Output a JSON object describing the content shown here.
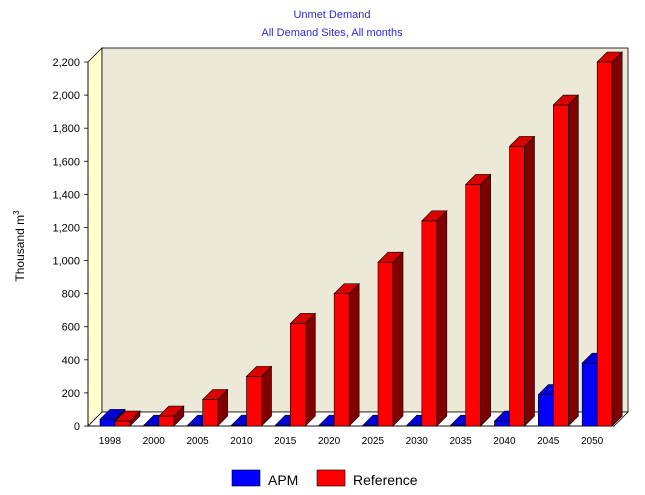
{
  "chart_data": {
    "type": "bar",
    "title": "Unmet Demand",
    "subtitle": "All Demand Sites,  All months",
    "ylabel": "Thousand m",
    "ylabel_superscript": "3",
    "categories": [
      "1998",
      "2000",
      "2005",
      "2010",
      "2015",
      "2020",
      "2025",
      "2030",
      "2035",
      "2040",
      "2045",
      "2050"
    ],
    "ylim": [
      0,
      2200
    ],
    "yticks": [
      0,
      200,
      400,
      600,
      800,
      1000,
      1200,
      1400,
      1600,
      1800,
      2000,
      2200
    ],
    "ytick_labels": [
      "0",
      "200",
      "400",
      "600",
      "800",
      "1,000",
      "1,200",
      "1,400",
      "1,600",
      "1,800",
      "2,000",
      "2,200"
    ],
    "series": [
      {
        "name": "APM",
        "color": "#0000ff",
        "values": [
          40,
          5,
          5,
          5,
          5,
          5,
          5,
          5,
          5,
          30,
          190,
          380
        ]
      },
      {
        "name": "Reference",
        "color": "#ff0000",
        "values": [
          30,
          60,
          160,
          300,
          620,
          800,
          990,
          1240,
          1460,
          1690,
          1940,
          2200
        ]
      }
    ],
    "grid": false,
    "legend_position": "bottom",
    "plot_background": "#ece9d8"
  }
}
